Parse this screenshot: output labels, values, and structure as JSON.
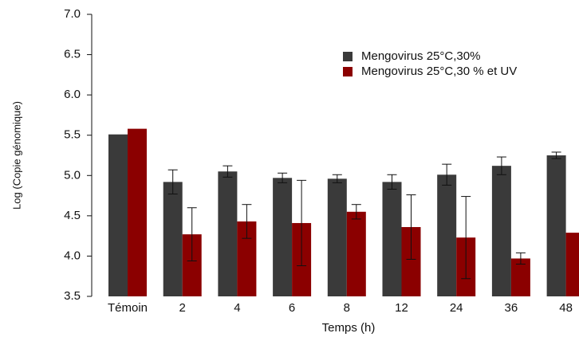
{
  "chart_data": {
    "type": "bar",
    "x_label": "Temps (h)",
    "y_label": "Log (Copie génomique)",
    "categories": [
      "Témoin",
      "2",
      "4",
      "6",
      "8",
      "12",
      "24",
      "36",
      "48"
    ],
    "series": [
      {
        "name": "Mengovirus 25°C,30%",
        "color": "#3a3a3a",
        "values": [
          5.51,
          4.92,
          5.05,
          4.97,
          4.96,
          4.92,
          5.01,
          5.12,
          5.25
        ],
        "errors": [
          null,
          0.15,
          0.07,
          0.06,
          0.05,
          0.09,
          0.13,
          0.11,
          0.04
        ]
      },
      {
        "name": "Mengovirus 25°C,30 % et UV",
        "color": "#8b0000",
        "values": [
          5.58,
          4.27,
          4.43,
          4.41,
          4.55,
          4.36,
          4.23,
          3.97,
          4.29
        ],
        "errors": [
          null,
          0.33,
          0.21,
          0.53,
          0.09,
          0.4,
          0.51,
          0.07,
          null
        ]
      }
    ],
    "ylim": [
      3.5,
      7.0
    ],
    "yticks": [
      {
        "value": 3.5,
        "label": "3.5"
      },
      {
        "value": 4.0,
        "label": "4.0"
      },
      {
        "value": 4.5,
        "label": "4.5"
      },
      {
        "value": 5.0,
        "label": "5.0"
      },
      {
        "value": 5.5,
        "label": "5.5"
      },
      {
        "value": 6.0,
        "label": "6.0"
      },
      {
        "value": 6.5,
        "label": "6.5"
      },
      {
        "value": 7.0,
        "label": "7.0"
      }
    ],
    "legend": "upper right",
    "grid": false
  }
}
